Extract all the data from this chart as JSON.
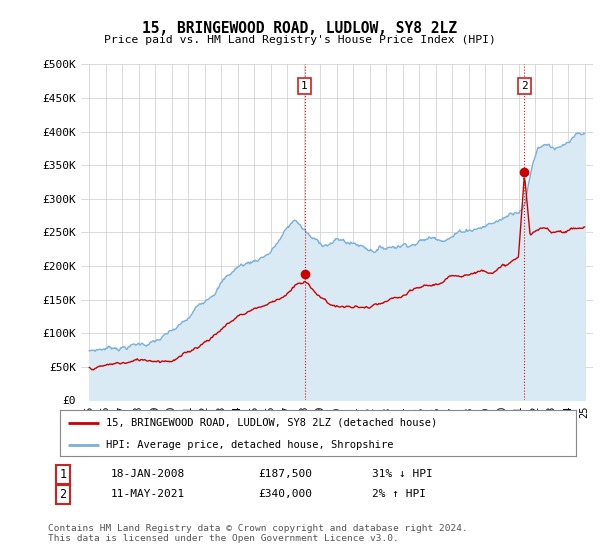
{
  "title": "15, BRINGEWOOD ROAD, LUDLOW, SY8 2LZ",
  "subtitle": "Price paid vs. HM Land Registry's House Price Index (HPI)",
  "ylabel_ticks": [
    "£0",
    "£50K",
    "£100K",
    "£150K",
    "£200K",
    "£250K",
    "£300K",
    "£350K",
    "£400K",
    "£450K",
    "£500K"
  ],
  "ytick_values": [
    0,
    50000,
    100000,
    150000,
    200000,
    250000,
    300000,
    350000,
    400000,
    450000,
    500000
  ],
  "xlim_start": 1994.5,
  "xlim_end": 2025.5,
  "ylim_min": 0,
  "ylim_max": 500000,
  "hpi_color": "#7ab0d8",
  "hpi_fill_color": "#daeaf5",
  "price_color": "#cc0000",
  "sale1_price": 187500,
  "sale1_year": 2008.04,
  "sale2_price": 340000,
  "sale2_year": 2021.36,
  "sale1_date": "18-JAN-2008",
  "sale1_pct": "31% ↓ HPI",
  "sale2_date": "11-MAY-2021",
  "sale2_pct": "2% ↑ HPI",
  "legend_line1": "15, BRINGEWOOD ROAD, LUDLOW, SY8 2LZ (detached house)",
  "legend_line2": "HPI: Average price, detached house, Shropshire",
  "copyright_text": "Contains HM Land Registry data © Crown copyright and database right 2024.\nThis data is licensed under the Open Government Licence v3.0.",
  "background_color": "#ffffff",
  "grid_color": "#cccccc"
}
